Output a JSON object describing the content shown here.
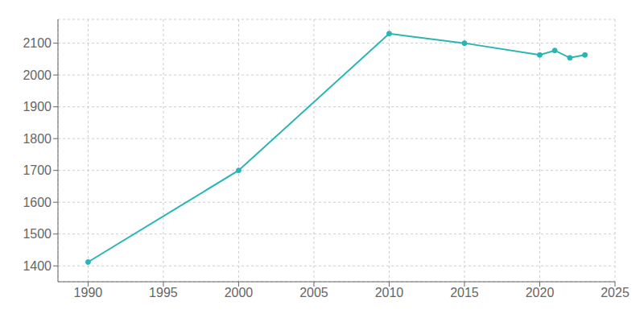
{
  "chart_data": {
    "type": "line",
    "x": [
      1990,
      2000,
      2010,
      2015,
      2020,
      2021,
      2022,
      2023
    ],
    "values": [
      1412,
      1700,
      2130,
      2100,
      2063,
      2077,
      2054,
      2063
    ],
    "color": "#2ab5b5",
    "marker": "circle",
    "line_style": "solid",
    "xlim": [
      1988,
      2025
    ],
    "ylim": [
      1350,
      2175
    ],
    "xticks": [
      1990,
      1995,
      2000,
      2005,
      2010,
      2015,
      2020,
      2025
    ],
    "yticks": [
      1400,
      1500,
      1600,
      1700,
      1800,
      1900,
      2000,
      2100
    ],
    "grid": true
  }
}
